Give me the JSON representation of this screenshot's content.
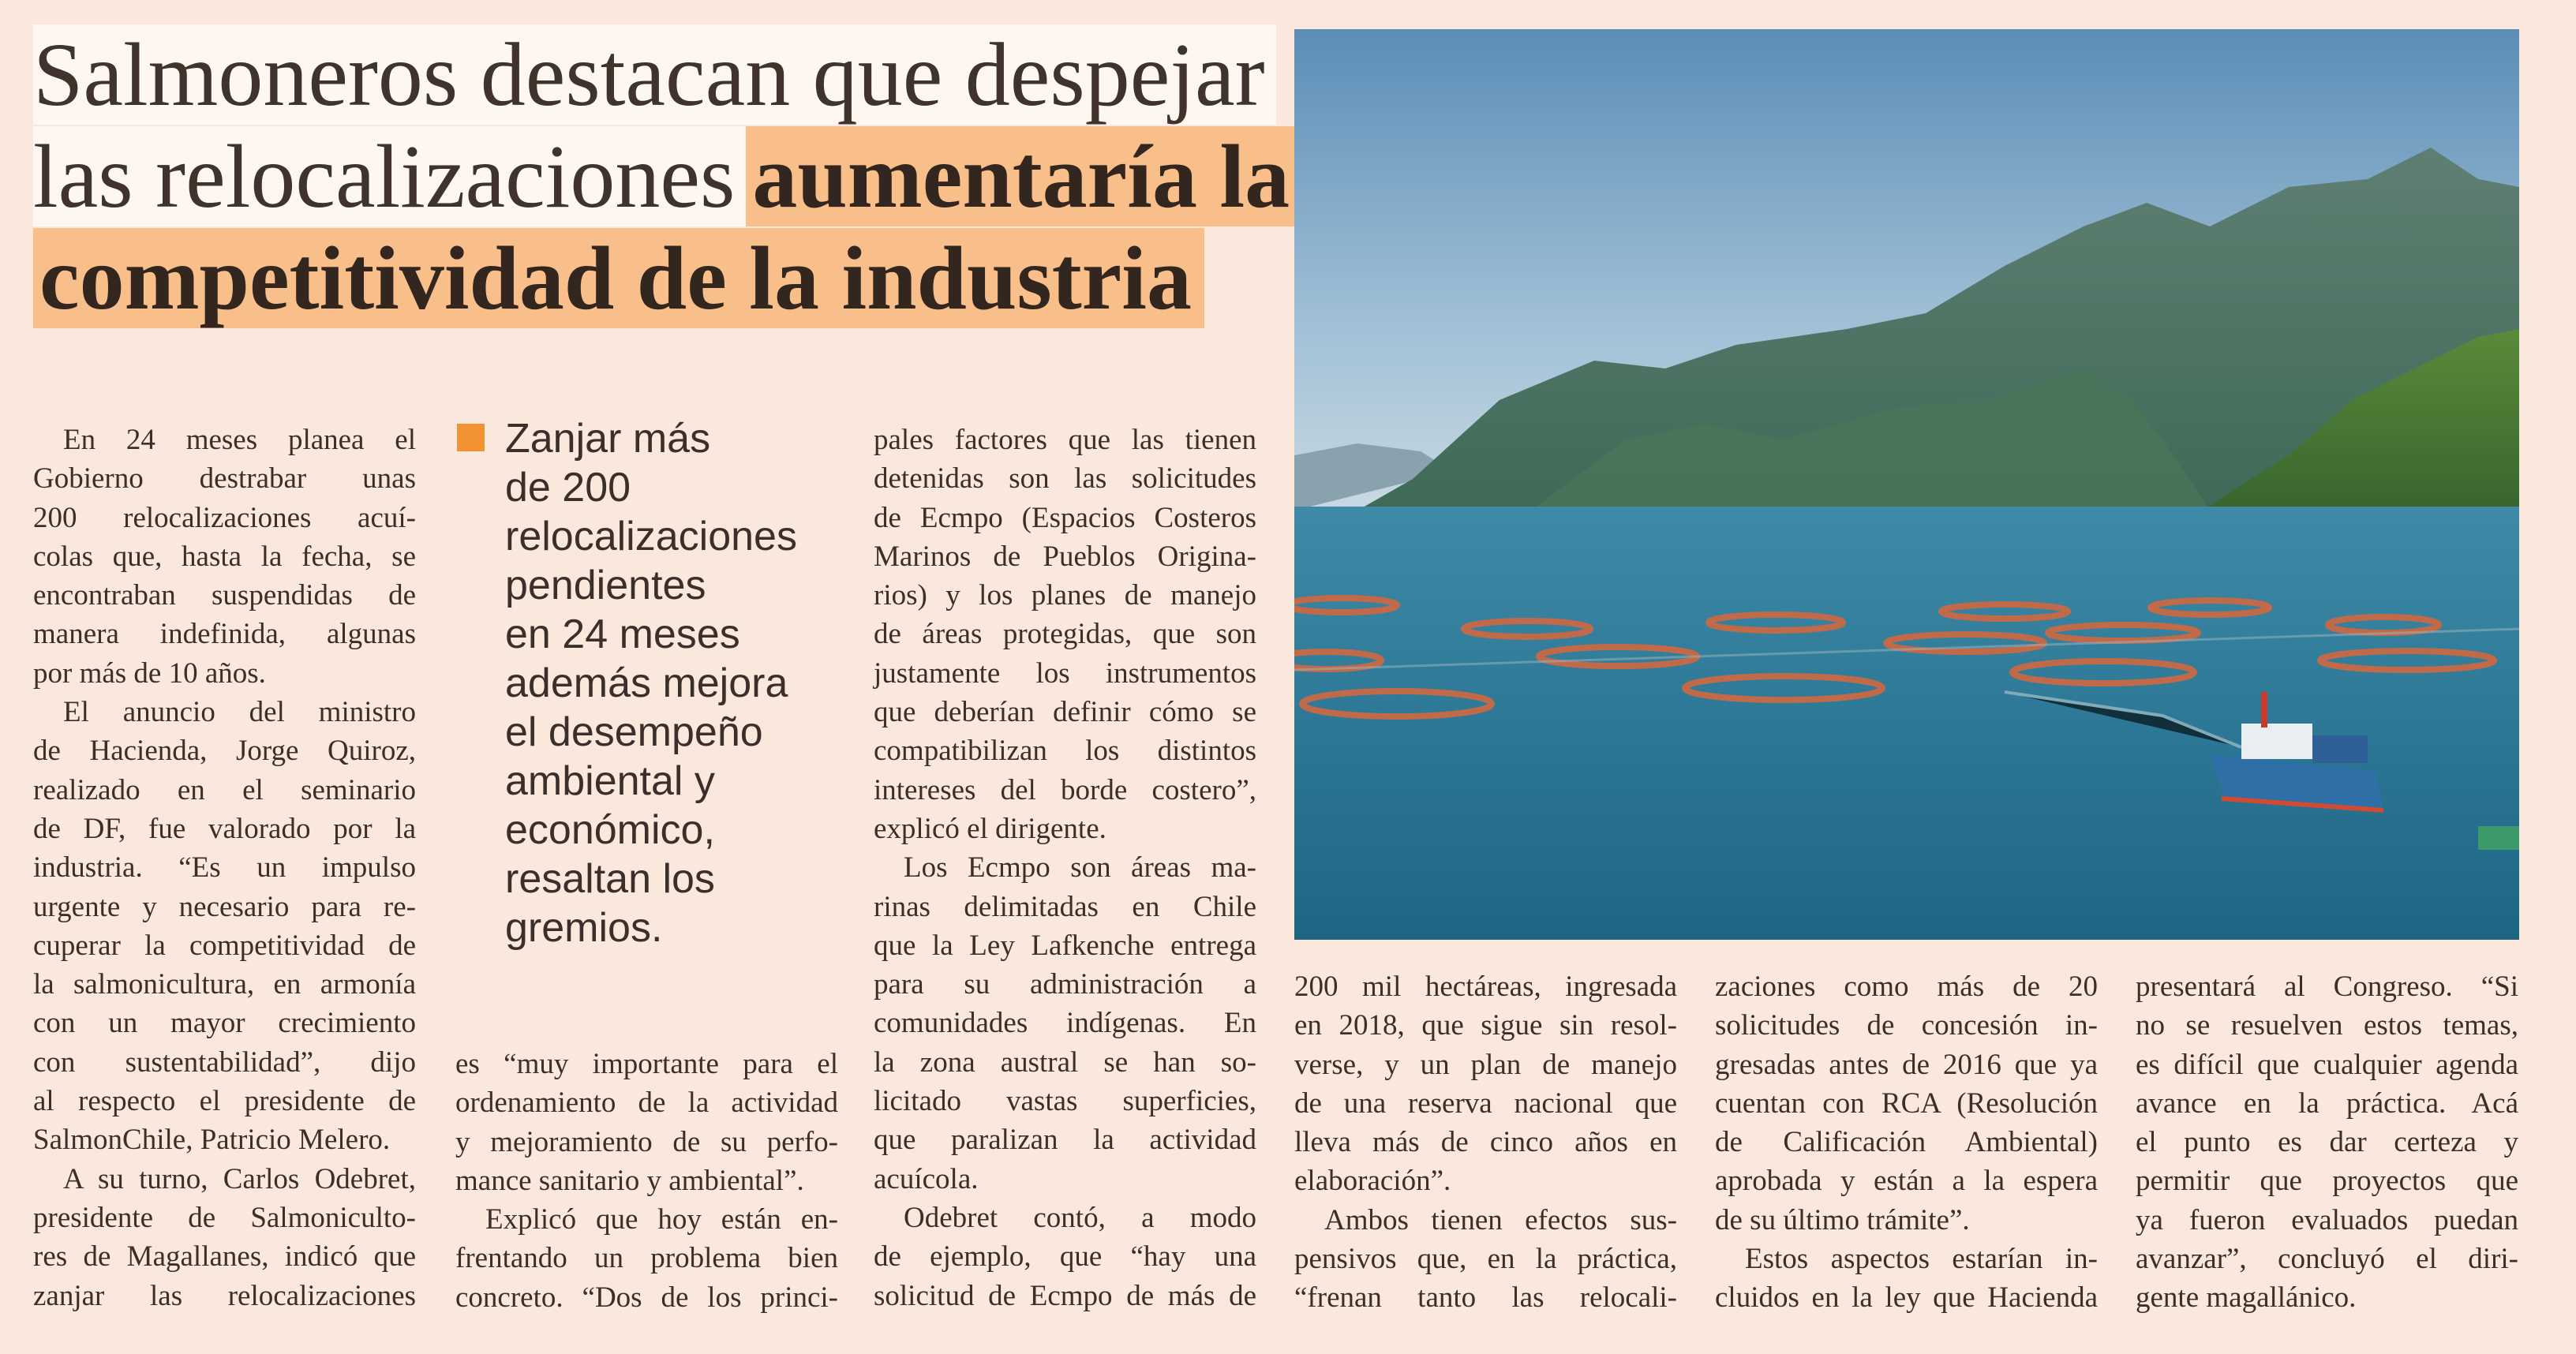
{
  "headline": {
    "line1": "Salmoneros destacan que despejar",
    "line2_plain": "las relocalizaciones",
    "line2_highlight": "aumentaría la",
    "line3_highlight": "competitividad de la industria"
  },
  "accent_color": "#f39232",
  "highlight_color": "#f8bf8a",
  "pull_quote": {
    "lines": [
      "Zanjar más",
      "de 200",
      "relocalizaciones",
      "pendientes",
      "en 24 meses",
      "además mejora",
      "el desempeño",
      "ambiental y",
      "económico,",
      "resaltan los",
      "gremios."
    ]
  },
  "photo": {
    "subject": "salmon farm cages in a fjord with boat and mountains"
  },
  "columns": [
    [
      [
        "En 24 meses planea el",
        "Gobierno destrabar unas",
        "200 relocalizaciones acuí-",
        "colas que, hasta la fecha, se",
        "encontraban suspendidas de",
        "manera indefinida, algunas",
        "por más de 10 años."
      ],
      [
        "El anuncio del ministro",
        "de Hacienda, Jorge Quiroz,",
        "realizado en el seminario",
        "de DF, fue valorado por la",
        "industria. “Es un impulso",
        "urgente y necesario para re-",
        "cuperar la competitividad de",
        "la salmonicultura, en armonía",
        "con un mayor crecimiento",
        "con sustentabilidad”, dijo",
        "al respecto el presidente de",
        "SalmonChile, Patricio Melero."
      ],
      [
        "A su turno, Carlos Odebret,",
        "presidente de Salmonicultо-",
        "res de Magallanes, indicó que",
        "zanjar las relocalizaciones"
      ]
    ],
    [
      [
        "es “muy importante para el",
        "ordenamiento de la actividad",
        "y mejoramiento de su perfo-",
        "mance sanitario y ambiental”."
      ],
      [
        "Explicó que hoy están en-",
        "frentando un problema bien",
        "concreto. “Dos de los princi-"
      ]
    ],
    [
      [
        "pales factores que las tienen",
        "detenidas son las solicitudes",
        "de Ecmpo (Espacios Costeros",
        "Marinos de Pueblos Origina-",
        "rios) y los planes de manejo",
        "de áreas protegidas, que son",
        "justamente los instrumentos",
        "que deberían definir cómo se",
        "compatibilizan los distintos",
        "intereses del borde costero”,",
        "explicó el dirigente."
      ],
      [
        "Los Ecmpo son áreas ma-",
        "rinas delimitadas en Chile",
        "que la Ley Lafkenche entrega",
        "para su administración a",
        "comunidades indígenas. En",
        "la zona austral se han so-",
        "licitado vastas superficies,",
        "que paralizan la actividad",
        "acuícola."
      ],
      [
        "Odebret contó, a modo",
        "de ejemplo, que “hay una",
        "solicitud de Ecmpo de más de"
      ]
    ],
    [
      [
        "200 mil hectáreas, ingresada",
        "en 2018, que sigue sin resol-",
        "verse, y un plan de manejo",
        "de una reserva nacional que",
        "lleva más de cinco años en",
        "elaboración”."
      ],
      [
        "Ambos tienen efectos sus-",
        "pensivos que, en la práctica,",
        "“frenan tanto las relocali-"
      ]
    ],
    [
      [
        "zaciones como más de 20",
        "solicitudes de concesión in-",
        "gresadas antes de 2016 que ya",
        "cuentan con RCA (Resolución",
        "de Calificación Ambiental)",
        "aprobada y están a la espera",
        "de su último trámite”."
      ],
      [
        "Estos aspectos estarían in-",
        "cluidos en la ley que Hacienda"
      ]
    ],
    [
      [
        "presentará al Congreso. “Si",
        "no se resuelven estos temas,",
        "es difícil que cualquier agenda",
        "avance en la práctica. Acá",
        "el punto es dar certeza y",
        "permitir que proyectos que",
        "ya fueron evaluados puedan",
        "avanzar”, concluyó el diri-",
        "gente magallánico."
      ]
    ]
  ]
}
